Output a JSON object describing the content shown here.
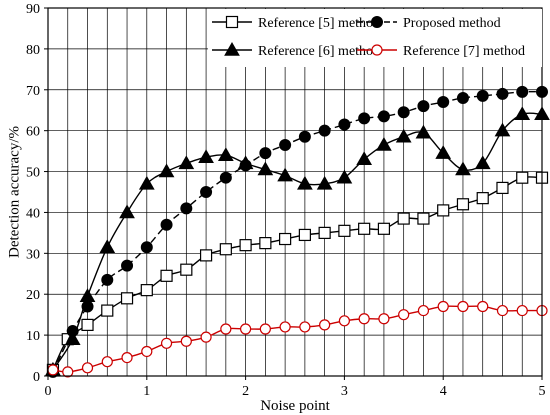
{
  "chart_data": {
    "type": "line",
    "xlabel": "Noise point",
    "ylabel": "Detection accuracy/%",
    "xlim": [
      0,
      5
    ],
    "ylim": [
      0,
      90
    ],
    "xticks": [
      0,
      1,
      2,
      3,
      4,
      5
    ],
    "yticks": [
      0,
      10,
      20,
      30,
      40,
      50,
      60,
      70,
      80,
      90
    ],
    "grid": true,
    "legend_placement": "top-right",
    "series": [
      {
        "name": "Reference [5] method",
        "marker": "open-square",
        "line": "solid",
        "color": "#000000",
        "x": [
          0.05,
          0.2,
          0.4,
          0.6,
          0.8,
          1.0,
          1.2,
          1.4,
          1.6,
          1.8,
          2.0,
          2.2,
          2.4,
          2.6,
          2.8,
          3.0,
          3.2,
          3.4,
          3.6,
          3.8,
          4.0,
          4.2,
          4.4,
          4.6,
          4.8,
          5.0
        ],
        "values": [
          1.5,
          9,
          12.5,
          16,
          19,
          21,
          24.5,
          26,
          29.5,
          31,
          32,
          32.5,
          33.5,
          34.5,
          35,
          35.5,
          36,
          36,
          38.5,
          38.5,
          40.5,
          42,
          43.5,
          46,
          48.5,
          48.5
        ]
      },
      {
        "name": "Proposed method",
        "marker": "filled-circle",
        "line": "dashed",
        "color": "#000000",
        "x": [
          0.05,
          0.25,
          0.4,
          0.6,
          0.8,
          1.0,
          1.2,
          1.4,
          1.6,
          1.8,
          2.0,
          2.2,
          2.4,
          2.6,
          2.8,
          3.0,
          3.2,
          3.4,
          3.6,
          3.8,
          4.0,
          4.2,
          4.4,
          4.6,
          4.8,
          5.0
        ],
        "values": [
          1,
          11,
          17,
          23.5,
          27,
          31.5,
          37,
          41,
          45,
          48.5,
          51.5,
          54.5,
          56.5,
          58.5,
          60,
          61.5,
          63,
          63.5,
          64.5,
          66,
          67,
          68,
          68.5,
          69,
          69.5,
          69.5
        ]
      },
      {
        "name": "Reference [6] method",
        "marker": "filled-triangle",
        "line": "solid",
        "color": "#000000",
        "x": [
          0.05,
          0.25,
          0.4,
          0.6,
          0.8,
          1.0,
          1.2,
          1.4,
          1.6,
          1.8,
          2.0,
          2.2,
          2.4,
          2.6,
          2.8,
          3.0,
          3.2,
          3.4,
          3.6,
          3.8,
          4.0,
          4.2,
          4.4,
          4.6,
          4.8,
          5.0
        ],
        "values": [
          1.5,
          9,
          19.5,
          31.5,
          40,
          47,
          50,
          52,
          53.5,
          54,
          52,
          50.5,
          49,
          47,
          47,
          48.5,
          53,
          56.5,
          58.5,
          59.5,
          54.5,
          50.5,
          52,
          60,
          64,
          64
        ]
      },
      {
        "name": "Reference [7] method",
        "marker": "open-circle",
        "line": "solid",
        "color": "#cc0000",
        "x": [
          0.05,
          0.2,
          0.4,
          0.6,
          0.8,
          1.0,
          1.2,
          1.4,
          1.6,
          1.8,
          2.0,
          2.2,
          2.4,
          2.6,
          2.8,
          3.0,
          3.2,
          3.4,
          3.6,
          3.8,
          4.0,
          4.2,
          4.4,
          4.6,
          4.8,
          5.0
        ],
        "values": [
          1.5,
          1,
          2,
          3.5,
          4.5,
          6,
          8,
          8.5,
          9.5,
          11.5,
          11.5,
          11.5,
          12,
          12,
          12.5,
          13.5,
          14,
          14,
          15,
          16,
          17,
          17,
          17,
          16,
          16,
          16
        ]
      }
    ]
  }
}
